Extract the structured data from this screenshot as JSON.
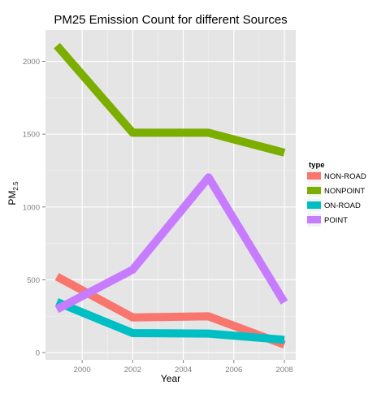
{
  "chart_data": {
    "type": "line",
    "title": "PM25 Emission Count for different Sources",
    "xlabel": "Year",
    "ylabel_main": "PM",
    "ylabel_sub": "2.5",
    "x": [
      1999,
      2002,
      2005,
      2008
    ],
    "xlim": [
      1998.55,
      2008.45
    ],
    "ylim": [
      -50,
      2215
    ],
    "x_ticks": [
      2000,
      2002,
      2004,
      2006,
      2008
    ],
    "x_tick_labels": [
      "2000",
      "2002",
      "2004",
      "2006",
      "2008"
    ],
    "y_ticks": [
      0,
      500,
      1000,
      1500,
      2000
    ],
    "y_tick_labels": [
      "0",
      "500",
      "1000",
      "1500",
      "2000"
    ],
    "grid": true,
    "panel_background": "#e5e5e5",
    "legend_position": "right",
    "legend_title": "type",
    "series": [
      {
        "name": "NON-ROAD",
        "color": "#f8766d",
        "values": [
          522,
          242,
          249,
          55
        ]
      },
      {
        "name": "NONPOINT",
        "color": "#7cae00",
        "values": [
          2108,
          1510,
          1510,
          1373
        ]
      },
      {
        "name": "ON-ROAD",
        "color": "#00bfc4",
        "values": [
          347,
          134,
          131,
          88
        ]
      },
      {
        "name": "POINT",
        "color": "#c77cff",
        "values": [
          297,
          569,
          1203,
          345
        ]
      }
    ]
  }
}
